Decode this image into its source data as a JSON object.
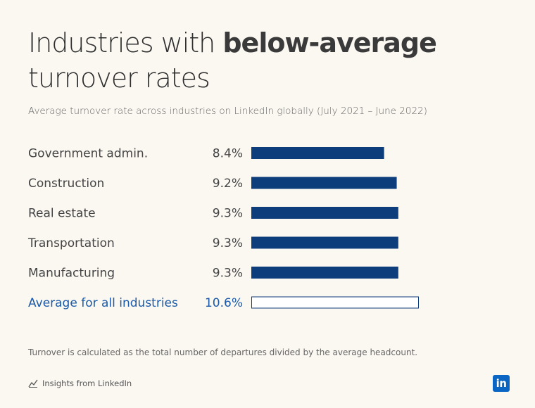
{
  "title": {
    "regular": "Industries with ",
    "bold": "below-average",
    "line2": "turnover rates"
  },
  "subtitle": "Average turnover rate across industries on LinkedIn globally (July 2021 – June 2022)",
  "chart_data": {
    "type": "bar",
    "orientation": "horizontal",
    "categories": [
      "Government admin.",
      "Construction",
      "Real estate",
      "Transportation",
      "Manufacturing",
      "Average for all industries"
    ],
    "values": [
      8.4,
      9.2,
      9.3,
      9.3,
      9.3,
      10.6
    ],
    "value_labels": [
      "8.4%",
      "9.2%",
      "9.3%",
      "9.3%",
      "9.3%",
      "10.6%"
    ],
    "unit": "%",
    "highlight_category": "Average for all industries",
    "xlim": [
      0,
      10.6
    ],
    "grid": false,
    "legend": "none"
  },
  "colors": {
    "bar": "#0d3d7a",
    "average_text": "#1a5aa8",
    "label_text": "#444444",
    "background": "#fbf8f2"
  },
  "footnote": "Turnover is calculated as the total number of departures divided by the average headcount.",
  "source": {
    "icon": "trend-line-icon",
    "label": "Insights from LinkedIn"
  },
  "logo": {
    "text": "in"
  }
}
